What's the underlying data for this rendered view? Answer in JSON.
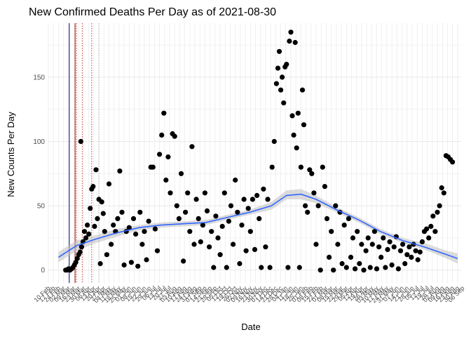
{
  "chart_data": {
    "type": "scatter",
    "title": "New Confirmed Deaths Per Day as of 2021-08-30",
    "xlabel": "Date",
    "ylabel": "New Counts Per Day",
    "x_range": [
      "2020-02-10",
      "2021-09-04"
    ],
    "ylim": [
      -10,
      192
    ],
    "y_ticks": [
      0,
      50,
      100,
      150
    ],
    "x_tick_labels": [
      "10 Feb",
      "17 Feb",
      "24 Feb",
      "02 Mar",
      "09 Mar",
      "16 Mar",
      "23 Mar",
      "30 Mar",
      "06 Apr",
      "13 Apr",
      "20 Apr",
      "27 Apr",
      "04 May",
      "11 May",
      "18 May",
      "25 May",
      "01 Jun",
      "08 Jun",
      "15 Jun",
      "22 Jun",
      "29 Jun",
      "06 Jul",
      "13 Jul",
      "20 Jul",
      "27 Jul",
      "03 Aug",
      "10 Aug",
      "17 Aug",
      "24 Aug",
      "31 Aug",
      "07 Sep",
      "14 Sep",
      "21 Sep",
      "28 Sep",
      "05 Oct",
      "12 Oct",
      "19 Oct",
      "26 Oct",
      "02 Nov",
      "09 Nov",
      "16 Nov",
      "23 Nov",
      "30 Nov",
      "07 Dec",
      "14 Dec",
      "21 Dec",
      "28 Dec",
      "04 Jan",
      "11 Jan",
      "18 Jan",
      "25 Jan",
      "01 Feb",
      "08 Feb",
      "15 Feb",
      "22 Feb",
      "01 Mar",
      "08 Mar",
      "15 Mar",
      "22 Mar",
      "29 Mar",
      "05 Apr",
      "12 Apr",
      "19 Apr",
      "26 Apr",
      "03 May",
      "10 May",
      "17 May",
      "24 May",
      "31 May",
      "07 Jun",
      "14 Jun",
      "21 Jun",
      "28 Jun",
      "05 Jul",
      "12 Jul",
      "19 Jul",
      "26 Jul",
      "02 Aug",
      "09 Aug",
      "16 Aug",
      "23 Aug",
      "30 Aug",
      "06 Sep"
    ],
    "grid": true,
    "colors": {
      "points": "#000000",
      "smooth": "#3366ff",
      "ribbon": "#bdbdbd",
      "vline_solid": "#00008b",
      "vline_dotted": "#c0392b",
      "grid": "#ebebeb"
    },
    "vlines": [
      {
        "date": "2020-03-10",
        "style": "solid",
        "color": "#00008b"
      },
      {
        "date": "2020-03-18",
        "style": "solid",
        "color": "#8b0000"
      },
      {
        "date": "2020-03-20",
        "style": "dotted",
        "color": "#c0392b"
      },
      {
        "date": "2020-03-28",
        "style": "dotted",
        "color": "#c0392b"
      },
      {
        "date": "2020-04-10",
        "style": "dotted",
        "color": "#c0392b"
      },
      {
        "date": "2020-04-20",
        "style": "dotted",
        "color": "#b0b0b0"
      }
    ],
    "smooth": {
      "x": [
        "2020-02-24",
        "2020-03-20",
        "2020-04-15",
        "2020-05-15",
        "2020-06-15",
        "2020-07-15",
        "2020-08-15",
        "2020-09-15",
        "2020-10-15",
        "2020-11-15",
        "2020-12-15",
        "2021-01-05",
        "2021-01-25",
        "2021-02-15",
        "2021-03-15",
        "2021-04-15",
        "2021-05-15",
        "2021-06-15",
        "2021-07-15",
        "2021-08-15",
        "2021-08-30"
      ],
      "y": [
        10,
        19,
        24,
        29,
        33,
        35,
        36,
        37,
        41,
        45,
        50,
        58,
        59,
        55,
        47,
        39,
        30,
        23,
        18,
        12,
        9
      ],
      "lower": [
        6,
        15,
        21,
        26,
        31,
        33,
        34,
        35,
        39,
        43,
        47,
        55,
        55,
        52,
        45,
        37,
        28,
        21,
        16,
        9,
        5
      ],
      "upper": [
        14,
        23,
        27,
        32,
        35,
        37,
        38,
        39,
        43,
        47,
        53,
        62,
        63,
        58,
        49,
        41,
        32,
        25,
        21,
        15,
        13
      ]
    },
    "points": [
      [
        "2020-03-05",
        0
      ],
      [
        "2020-03-07",
        0
      ],
      [
        "2020-03-09",
        1
      ],
      [
        "2020-03-11",
        0
      ],
      [
        "2020-03-13",
        1
      ],
      [
        "2020-03-15",
        2
      ],
      [
        "2020-03-17",
        4
      ],
      [
        "2020-03-19",
        6
      ],
      [
        "2020-03-21",
        9
      ],
      [
        "2020-03-23",
        12
      ],
      [
        "2020-03-25",
        14
      ],
      [
        "2020-03-26",
        100
      ],
      [
        "2020-03-27",
        18
      ],
      [
        "2020-03-29",
        22
      ],
      [
        "2020-03-31",
        30
      ],
      [
        "2020-04-02",
        25
      ],
      [
        "2020-04-04",
        35
      ],
      [
        "2020-04-06",
        28
      ],
      [
        "2020-04-08",
        48
      ],
      [
        "2020-04-10",
        63
      ],
      [
        "2020-04-12",
        65
      ],
      [
        "2020-04-14",
        34
      ],
      [
        "2020-04-16",
        78
      ],
      [
        "2020-04-18",
        40
      ],
      [
        "2020-04-20",
        55
      ],
      [
        "2020-04-22",
        5
      ],
      [
        "2020-04-24",
        53
      ],
      [
        "2020-04-26",
        44
      ],
      [
        "2020-04-28",
        30
      ],
      [
        "2020-05-01",
        12
      ],
      [
        "2020-05-04",
        67
      ],
      [
        "2020-05-07",
        20
      ],
      [
        "2020-05-10",
        35
      ],
      [
        "2020-05-13",
        30
      ],
      [
        "2020-05-16",
        40
      ],
      [
        "2020-05-19",
        77
      ],
      [
        "2020-05-22",
        45
      ],
      [
        "2020-05-25",
        4
      ],
      [
        "2020-05-28",
        30
      ],
      [
        "2020-06-01",
        33
      ],
      [
        "2020-06-04",
        6
      ],
      [
        "2020-06-07",
        40
      ],
      [
        "2020-06-10",
        28
      ],
      [
        "2020-06-13",
        3
      ],
      [
        "2020-06-16",
        45
      ],
      [
        "2020-06-19",
        20
      ],
      [
        "2020-06-22",
        30
      ],
      [
        "2020-06-25",
        8
      ],
      [
        "2020-06-28",
        38
      ],
      [
        "2020-07-01",
        80
      ],
      [
        "2020-07-04",
        80
      ],
      [
        "2020-07-07",
        32
      ],
      [
        "2020-07-10",
        15
      ],
      [
        "2020-07-13",
        90
      ],
      [
        "2020-07-16",
        105
      ],
      [
        "2020-07-19",
        122
      ],
      [
        "2020-07-22",
        70
      ],
      [
        "2020-07-25",
        88
      ],
      [
        "2020-07-28",
        60
      ],
      [
        "2020-07-31",
        106
      ],
      [
        "2020-08-03",
        104
      ],
      [
        "2020-08-06",
        50
      ],
      [
        "2020-08-09",
        40
      ],
      [
        "2020-08-12",
        75
      ],
      [
        "2020-08-15",
        7
      ],
      [
        "2020-08-18",
        45
      ],
      [
        "2020-08-21",
        60
      ],
      [
        "2020-08-24",
        30
      ],
      [
        "2020-08-27",
        96
      ],
      [
        "2020-08-30",
        20
      ],
      [
        "2020-09-02",
        55
      ],
      [
        "2020-09-05",
        40
      ],
      [
        "2020-09-08",
        22
      ],
      [
        "2020-09-11",
        35
      ],
      [
        "2020-09-14",
        60
      ],
      [
        "2020-09-17",
        46
      ],
      [
        "2020-09-20",
        18
      ],
      [
        "2020-09-23",
        30
      ],
      [
        "2020-09-26",
        2
      ],
      [
        "2020-09-29",
        42
      ],
      [
        "2020-10-02",
        25
      ],
      [
        "2020-10-05",
        12
      ],
      [
        "2020-10-08",
        34
      ],
      [
        "2020-10-11",
        60
      ],
      [
        "2020-10-14",
        2
      ],
      [
        "2020-10-17",
        38
      ],
      [
        "2020-10-20",
        50
      ],
      [
        "2020-10-23",
        20
      ],
      [
        "2020-10-26",
        70
      ],
      [
        "2020-10-29",
        45
      ],
      [
        "2020-11-01",
        5
      ],
      [
        "2020-11-04",
        35
      ],
      [
        "2020-11-07",
        55
      ],
      [
        "2020-11-10",
        15
      ],
      [
        "2020-11-13",
        48
      ],
      [
        "2020-11-16",
        30
      ],
      [
        "2020-11-19",
        55
      ],
      [
        "2020-11-22",
        16
      ],
      [
        "2020-11-25",
        58
      ],
      [
        "2020-11-28",
        40
      ],
      [
        "2020-12-01",
        2
      ],
      [
        "2020-12-04",
        63
      ],
      [
        "2020-12-07",
        18
      ],
      [
        "2020-12-10",
        55
      ],
      [
        "2020-12-13",
        2
      ],
      [
        "2020-12-16",
        80
      ],
      [
        "2020-12-19",
        100
      ],
      [
        "2020-12-22",
        145
      ],
      [
        "2020-12-24",
        157
      ],
      [
        "2020-12-26",
        170
      ],
      [
        "2020-12-28",
        140
      ],
      [
        "2020-12-30",
        150
      ],
      [
        "2021-01-01",
        130
      ],
      [
        "2021-01-03",
        158
      ],
      [
        "2021-01-05",
        160
      ],
      [
        "2021-01-07",
        2
      ],
      [
        "2021-01-09",
        178
      ],
      [
        "2021-01-11",
        185
      ],
      [
        "2021-01-13",
        120
      ],
      [
        "2021-01-15",
        105
      ],
      [
        "2021-01-17",
        177
      ],
      [
        "2021-01-19",
        95
      ],
      [
        "2021-01-21",
        122
      ],
      [
        "2021-01-23",
        2
      ],
      [
        "2021-01-25",
        80
      ],
      [
        "2021-01-27",
        140
      ],
      [
        "2021-01-29",
        113
      ],
      [
        "2021-01-31",
        50
      ],
      [
        "2021-02-03",
        45
      ],
      [
        "2021-02-06",
        78
      ],
      [
        "2021-02-09",
        75
      ],
      [
        "2021-02-12",
        60
      ],
      [
        "2021-02-15",
        20
      ],
      [
        "2021-02-18",
        50
      ],
      [
        "2021-02-21",
        0
      ],
      [
        "2021-02-24",
        80
      ],
      [
        "2021-02-27",
        65
      ],
      [
        "2021-03-02",
        40
      ],
      [
        "2021-03-05",
        10
      ],
      [
        "2021-03-08",
        30
      ],
      [
        "2021-03-11",
        0
      ],
      [
        "2021-03-14",
        50
      ],
      [
        "2021-03-17",
        20
      ],
      [
        "2021-03-20",
        45
      ],
      [
        "2021-03-23",
        5
      ],
      [
        "2021-03-26",
        35
      ],
      [
        "2021-03-29",
        2
      ],
      [
        "2021-04-01",
        40
      ],
      [
        "2021-04-04",
        10
      ],
      [
        "2021-04-07",
        25
      ],
      [
        "2021-04-10",
        1
      ],
      [
        "2021-04-13",
        30
      ],
      [
        "2021-04-16",
        5
      ],
      [
        "2021-04-19",
        20
      ],
      [
        "2021-04-22",
        0
      ],
      [
        "2021-04-25",
        15
      ],
      [
        "2021-04-28",
        25
      ],
      [
        "2021-05-01",
        2
      ],
      [
        "2021-05-04",
        20
      ],
      [
        "2021-05-07",
        30
      ],
      [
        "2021-05-10",
        1
      ],
      [
        "2021-05-13",
        18
      ],
      [
        "2021-05-16",
        10
      ],
      [
        "2021-05-19",
        25
      ],
      [
        "2021-05-22",
        2
      ],
      [
        "2021-05-25",
        16
      ],
      [
        "2021-05-28",
        22
      ],
      [
        "2021-05-31",
        4
      ],
      [
        "2021-06-03",
        18
      ],
      [
        "2021-06-06",
        26
      ],
      [
        "2021-06-09",
        1
      ],
      [
        "2021-06-12",
        15
      ],
      [
        "2021-06-15",
        20
      ],
      [
        "2021-06-18",
        5
      ],
      [
        "2021-06-21",
        12
      ],
      [
        "2021-06-24",
        18
      ],
      [
        "2021-06-27",
        10
      ],
      [
        "2021-06-30",
        20
      ],
      [
        "2021-07-03",
        15
      ],
      [
        "2021-07-06",
        8
      ],
      [
        "2021-07-09",
        14
      ],
      [
        "2021-07-12",
        22
      ],
      [
        "2021-07-15",
        30
      ],
      [
        "2021-07-18",
        32
      ],
      [
        "2021-07-21",
        25
      ],
      [
        "2021-07-24",
        34
      ],
      [
        "2021-07-27",
        42
      ],
      [
        "2021-07-30",
        30
      ],
      [
        "2021-08-02",
        45
      ],
      [
        "2021-08-05",
        50
      ],
      [
        "2021-08-08",
        64
      ],
      [
        "2021-08-11",
        60
      ],
      [
        "2021-08-14",
        89
      ],
      [
        "2021-08-17",
        88
      ],
      [
        "2021-08-20",
        86
      ],
      [
        "2021-08-23",
        84
      ]
    ]
  }
}
